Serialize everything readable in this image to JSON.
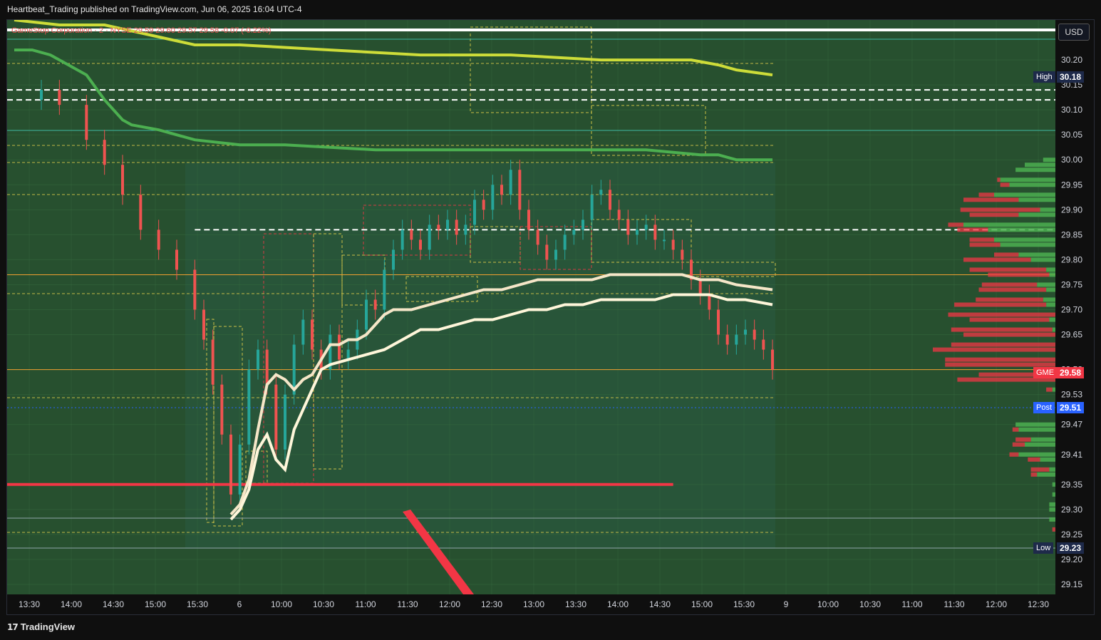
{
  "header": {
    "publisher": "Heartbeat_Trading published on TradingView.com, Jun 06, 2025 16:04 UTC-4"
  },
  "legend_line": "GameStop Corporation · 2 · NYSE  29.59  29.60  29.57  29.58  -0.07 (-0.22%)",
  "currency": "USD",
  "footer": {
    "brand": "TradingView",
    "logo": "17"
  },
  "price_tags": {
    "high": {
      "label": "High",
      "value": "30.18"
    },
    "last": {
      "label": "GME",
      "value": "29.58"
    },
    "post": {
      "label": "Post",
      "value": "29.51"
    },
    "low": {
      "label": "Low",
      "value": "29.23"
    }
  },
  "colors": {
    "background": "#27502f",
    "up": "#26a69a",
    "down": "#ef5350",
    "vwap_band": "#f5e6c8",
    "ma_green": "#4caf50",
    "ma_yellow": "#cddc39",
    "support_red": "#f23645",
    "dashed_yellow": "#e6d34a",
    "profile_green": "#4caf50",
    "profile_red": "#f23645"
  },
  "chart_data": {
    "type": "candlestick",
    "symbol": "GME",
    "ylim": [
      29.13,
      30.28
    ],
    "y_ticks": [
      "30.20",
      "30.15",
      "30.10",
      "30.05",
      "30.00",
      "29.95",
      "29.90",
      "29.85",
      "29.80",
      "29.75",
      "29.70",
      "29.65",
      "29.58",
      "29.53",
      "29.47",
      "29.41",
      "29.35",
      "29.30",
      "29.25",
      "29.20",
      "29.15"
    ],
    "x_ticks": [
      "13:30",
      "14:00",
      "14:30",
      "15:00",
      "15:30",
      "6",
      "10:00",
      "10:30",
      "11:00",
      "11:30",
      "12:00",
      "12:30",
      "13:00",
      "13:30",
      "14:00",
      "14:30",
      "15:00",
      "15:30",
      "9",
      "10:00",
      "10:30",
      "11:00",
      "11:30",
      "12:00",
      "12:30"
    ],
    "price_path": [
      [
        0,
        30.12
      ],
      [
        3,
        30.14
      ],
      [
        5,
        30.11
      ],
      [
        8,
        30.04
      ],
      [
        10,
        29.99
      ],
      [
        12,
        29.93
      ],
      [
        14,
        29.86
      ],
      [
        16,
        29.82
      ],
      [
        18,
        29.78
      ],
      [
        20,
        29.7
      ],
      [
        21,
        29.64
      ],
      [
        22,
        29.55
      ],
      [
        23,
        29.45
      ],
      [
        24,
        29.33
      ],
      [
        25,
        29.43
      ],
      [
        26,
        29.58
      ],
      [
        27,
        29.62
      ],
      [
        28,
        29.55
      ],
      [
        29,
        29.42
      ],
      [
        30,
        29.53
      ],
      [
        31,
        29.63
      ],
      [
        32,
        29.68
      ],
      [
        33,
        29.62
      ],
      [
        34,
        29.58
      ],
      [
        35,
        29.65
      ],
      [
        36,
        29.6
      ],
      [
        37,
        29.62
      ],
      [
        38,
        29.66
      ],
      [
        39,
        29.72
      ],
      [
        40,
        29.7
      ],
      [
        41,
        29.78
      ],
      [
        42,
        29.82
      ],
      [
        43,
        29.86
      ],
      [
        44,
        29.84
      ],
      [
        45,
        29.82
      ],
      [
        46,
        29.87
      ],
      [
        47,
        29.86
      ],
      [
        48,
        29.88
      ],
      [
        49,
        29.85
      ],
      [
        50,
        29.87
      ],
      [
        51,
        29.92
      ],
      [
        52,
        29.9
      ],
      [
        53,
        29.95
      ],
      [
        54,
        29.93
      ],
      [
        55,
        29.98
      ],
      [
        56,
        29.9
      ],
      [
        57,
        29.86
      ],
      [
        58,
        29.83
      ],
      [
        59,
        29.8
      ],
      [
        60,
        29.82
      ],
      [
        61,
        29.85
      ],
      [
        62,
        29.86
      ],
      [
        63,
        29.88
      ],
      [
        64,
        29.93
      ],
      [
        65,
        29.94
      ],
      [
        66,
        29.9
      ],
      [
        67,
        29.88
      ],
      [
        68,
        29.85
      ],
      [
        69,
        29.86
      ],
      [
        70,
        29.87
      ],
      [
        71,
        29.84
      ],
      [
        72,
        29.84
      ],
      [
        73,
        29.82
      ],
      [
        74,
        29.8
      ],
      [
        75,
        29.76
      ],
      [
        76,
        29.73
      ],
      [
        77,
        29.7
      ],
      [
        78,
        29.65
      ],
      [
        79,
        29.63
      ],
      [
        80,
        29.65
      ],
      [
        81,
        29.66
      ],
      [
        82,
        29.64
      ],
      [
        83,
        29.62
      ],
      [
        84,
        29.58
      ]
    ],
    "series": [
      {
        "name": "",
        "values": [
          [
            0,
            30.22
          ],
          [
            2,
            30.22
          ],
          [
            4,
            30.21
          ],
          [
            6,
            30.19
          ],
          [
            8,
            30.17
          ],
          [
            10,
            30.12
          ],
          [
            12,
            30.08
          ],
          [
            13,
            30.07
          ],
          [
            16,
            30.06
          ],
          [
            20,
            30.04
          ],
          [
            25,
            30.03
          ],
          [
            30,
            30.03
          ],
          [
            40,
            30.02
          ],
          [
            50,
            30.02
          ],
          [
            60,
            30.02
          ],
          [
            70,
            30.02
          ],
          [
            76,
            30.01
          ],
          [
            78,
            30.01
          ],
          [
            80,
            30.0
          ],
          [
            84,
            30.0
          ]
        ]
      },
      {
        "name": "",
        "values": [
          [
            0,
            30.28
          ],
          [
            5,
            30.27
          ],
          [
            10,
            30.27
          ],
          [
            15,
            30.25
          ],
          [
            20,
            30.23
          ],
          [
            25,
            30.23
          ],
          [
            35,
            30.22
          ],
          [
            45,
            30.21
          ],
          [
            55,
            30.21
          ],
          [
            65,
            30.2
          ],
          [
            75,
            30.2
          ],
          [
            78,
            30.19
          ],
          [
            80,
            30.18
          ],
          [
            84,
            30.17
          ]
        ]
      },
      {
        "name": "",
        "values": [
          [
            24,
            29.29
          ],
          [
            25,
            29.31
          ],
          [
            26,
            29.36
          ],
          [
            27,
            29.46
          ],
          [
            28,
            29.55
          ],
          [
            29,
            29.57
          ],
          [
            30,
            29.56
          ],
          [
            31,
            29.54
          ],
          [
            32,
            29.56
          ],
          [
            33,
            29.57
          ],
          [
            34,
            29.6
          ],
          [
            35,
            29.63
          ],
          [
            36,
            29.63
          ],
          [
            37,
            29.64
          ],
          [
            38,
            29.64
          ],
          [
            39,
            29.65
          ],
          [
            40,
            29.67
          ],
          [
            41,
            29.69
          ],
          [
            42,
            29.7
          ],
          [
            44,
            29.7
          ],
          [
            46,
            29.71
          ],
          [
            48,
            29.72
          ],
          [
            50,
            29.73
          ],
          [
            52,
            29.74
          ],
          [
            54,
            29.74
          ],
          [
            56,
            29.75
          ],
          [
            58,
            29.76
          ],
          [
            60,
            29.76
          ],
          [
            62,
            29.76
          ],
          [
            64,
            29.76
          ],
          [
            66,
            29.77
          ],
          [
            68,
            29.77
          ],
          [
            70,
            29.77
          ],
          [
            72,
            29.77
          ],
          [
            74,
            29.77
          ],
          [
            76,
            29.76
          ],
          [
            78,
            29.76
          ],
          [
            80,
            29.75
          ],
          [
            84,
            29.74
          ]
        ]
      },
      {
        "name": "",
        "values": [
          [
            24,
            29.28
          ],
          [
            25,
            29.3
          ],
          [
            26,
            29.34
          ],
          [
            27,
            29.42
          ],
          [
            28,
            29.45
          ],
          [
            29,
            29.4
          ],
          [
            30,
            29.38
          ],
          [
            31,
            29.46
          ],
          [
            32,
            29.5
          ],
          [
            33,
            29.54
          ],
          [
            34,
            29.58
          ],
          [
            35,
            29.59
          ],
          [
            37,
            29.6
          ],
          [
            39,
            29.61
          ],
          [
            41,
            29.62
          ],
          [
            43,
            29.64
          ],
          [
            45,
            29.66
          ],
          [
            47,
            29.66
          ],
          [
            49,
            29.67
          ],
          [
            51,
            29.68
          ],
          [
            53,
            29.68
          ],
          [
            55,
            29.69
          ],
          [
            57,
            29.7
          ],
          [
            59,
            29.7
          ],
          [
            61,
            29.71
          ],
          [
            63,
            29.71
          ],
          [
            65,
            29.72
          ],
          [
            67,
            29.72
          ],
          [
            69,
            29.72
          ],
          [
            71,
            29.72
          ],
          [
            73,
            29.73
          ],
          [
            75,
            29.73
          ],
          [
            77,
            29.73
          ],
          [
            79,
            29.72
          ],
          [
            81,
            29.72
          ],
          [
            84,
            29.71
          ]
        ]
      }
    ],
    "horizontal_levels": [
      {
        "y": 29.35,
        "color": "#f23645",
        "style": "solid",
        "x_end": 73
      },
      {
        "y": 29.86,
        "color": "#ffffff",
        "style": "dashed",
        "x_start": 20
      },
      {
        "y": 30.14,
        "color": "#ffffff",
        "style": "dashed"
      },
      {
        "y": 30.12,
        "color": "#ffffff",
        "style": "dashed"
      },
      {
        "y": 29.77,
        "color": "#f0a030",
        "style": "solid"
      },
      {
        "y": 29.58,
        "color": "#f0a030",
        "style": "solid"
      }
    ],
    "volume_profile": [
      [
        30.0,
        0.04,
        0.0
      ],
      [
        29.99,
        0.1,
        0.0
      ],
      [
        29.98,
        0.13,
        0.0
      ],
      [
        29.96,
        0.18,
        0.01
      ],
      [
        29.95,
        0.15,
        0.03
      ],
      [
        29.93,
        0.2,
        0.05
      ],
      [
        29.92,
        0.12,
        0.18
      ],
      [
        29.9,
        0.05,
        0.26
      ],
      [
        29.89,
        0.12,
        0.16
      ],
      [
        29.87,
        0.3,
        0.05
      ],
      [
        29.86,
        0.22,
        0.1
      ],
      [
        29.84,
        0.2,
        0.08
      ],
      [
        29.83,
        0.18,
        0.1
      ],
      [
        29.81,
        0.12,
        0.08
      ],
      [
        29.8,
        0.08,
        0.22
      ],
      [
        29.78,
        0.03,
        0.25
      ],
      [
        29.77,
        0.02,
        0.2
      ],
      [
        29.75,
        0.06,
        0.18
      ],
      [
        29.74,
        0.03,
        0.22
      ],
      [
        29.72,
        0.04,
        0.22
      ],
      [
        29.71,
        0.03,
        0.3
      ],
      [
        29.69,
        0.0,
        0.35
      ],
      [
        29.68,
        0.02,
        0.26
      ],
      [
        29.66,
        0.01,
        0.33
      ],
      [
        29.65,
        0.0,
        0.3
      ],
      [
        29.63,
        0.0,
        0.34
      ],
      [
        29.62,
        0.0,
        0.4
      ],
      [
        29.6,
        0.0,
        0.36
      ],
      [
        29.59,
        0.0,
        0.36
      ],
      [
        29.57,
        0.0,
        0.25
      ],
      [
        29.56,
        0.0,
        0.32
      ],
      [
        29.54,
        0.01,
        0.02
      ],
      [
        29.47,
        0.13,
        0.0
      ],
      [
        29.46,
        0.12,
        0.02
      ],
      [
        29.44,
        0.08,
        0.05
      ],
      [
        29.43,
        0.1,
        0.04
      ],
      [
        29.41,
        0.12,
        0.03
      ],
      [
        29.4,
        0.05,
        0.04
      ],
      [
        29.38,
        0.02,
        0.06
      ],
      [
        29.37,
        0.06,
        0.02
      ],
      [
        29.35,
        0.01,
        0.0
      ],
      [
        29.33,
        0.01,
        0.0
      ],
      [
        29.31,
        0.02,
        0.0
      ],
      [
        29.3,
        0.02,
        0.0
      ],
      [
        29.28,
        0.02,
        0.0
      ],
      [
        29.26,
        0.0,
        0.01
      ]
    ]
  }
}
